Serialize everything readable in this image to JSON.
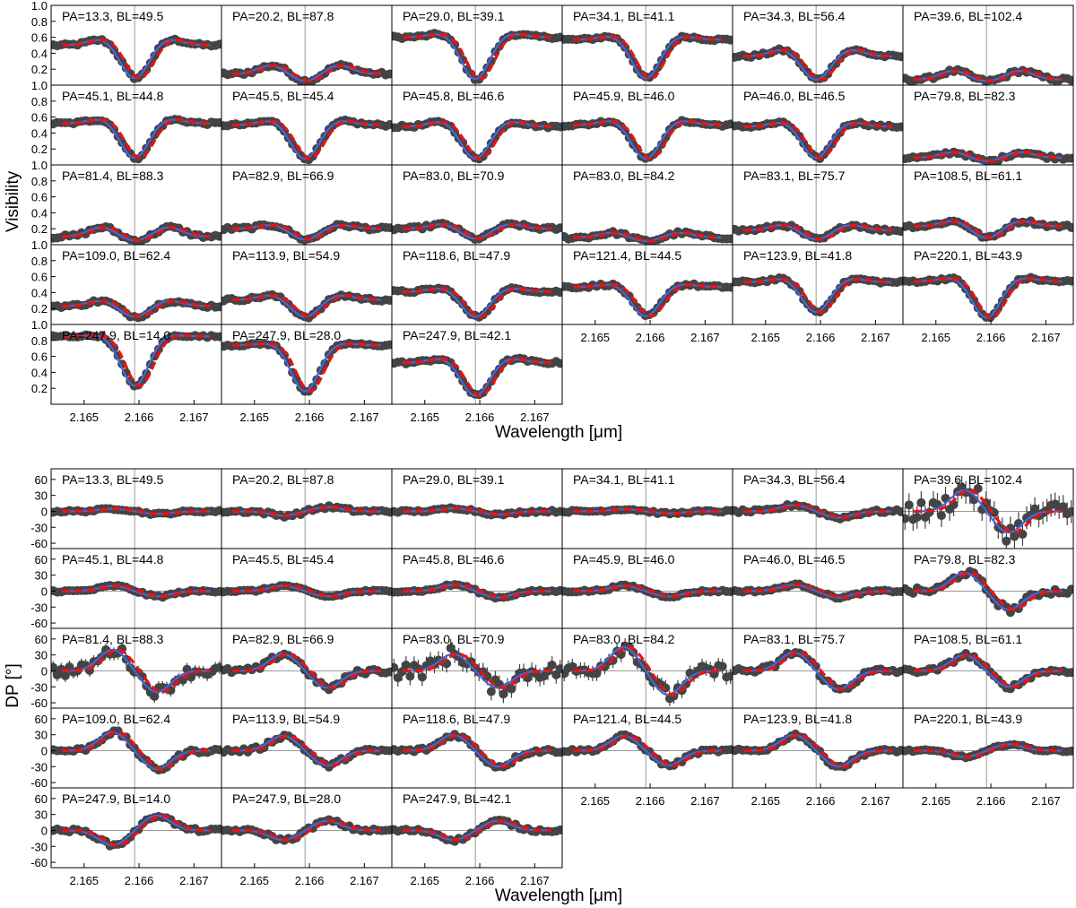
{
  "chart_data": [
    {
      "type": "scatter",
      "panel_group": "visibility",
      "ylabel": "Visibility",
      "xlabel": "Wavelength [μm]",
      "xlim": [
        2.1644,
        2.1675
      ],
      "ylim": [
        0.0,
        1.0
      ],
      "x_ticks": [
        "2.165",
        "2.166",
        "2.167"
      ],
      "x_tick_values": [
        2.165,
        2.166,
        2.167
      ],
      "y_ticks": [
        "1.0",
        "0.8",
        "0.6",
        "0.4",
        "0.2"
      ],
      "y_tick_values": [
        1.0,
        0.8,
        0.6,
        0.4,
        0.2
      ],
      "line_center": 2.16592,
      "series_styles": {
        "data": "#444444",
        "model_a": "#4466dd",
        "model_b": "#ee1111"
      },
      "panels": [
        {
          "label": "PA=13.3, BL=49.5",
          "cont": 0.5,
          "depth": 0.42,
          "bump": 0.08
        },
        {
          "label": "PA=20.2, BL=87.8",
          "cont": 0.14,
          "depth": 0.1,
          "bump": 0.11
        },
        {
          "label": "PA=29.0, BL=39.1",
          "cont": 0.6,
          "depth": 0.53,
          "bump": 0.05
        },
        {
          "label": "PA=34.1, BL=41.1",
          "cont": 0.57,
          "depth": 0.49,
          "bump": 0.05
        },
        {
          "label": "PA=34.3, BL=56.4",
          "cont": 0.36,
          "depth": 0.3,
          "bump": 0.09
        },
        {
          "label": "PA=39.6, BL=102.4",
          "cont": 0.07,
          "depth": 0.03,
          "bump": 0.11
        },
        {
          "label": "PA=45.1, BL=44.8",
          "cont": 0.52,
          "depth": 0.44,
          "bump": 0.06
        },
        {
          "label": "PA=45.5, BL=45.4",
          "cont": 0.5,
          "depth": 0.43,
          "bump": 0.06
        },
        {
          "label": "PA=45.8, BL=46.6",
          "cont": 0.48,
          "depth": 0.41,
          "bump": 0.07
        },
        {
          "label": "PA=45.9, BL=46.0",
          "cont": 0.5,
          "depth": 0.43,
          "bump": 0.06
        },
        {
          "label": "PA=46.0, BL=46.5",
          "cont": 0.48,
          "depth": 0.4,
          "bump": 0.06
        },
        {
          "label": "PA=79.8, BL=82.3",
          "cont": 0.09,
          "depth": 0.05,
          "bump": 0.07
        },
        {
          "label": "PA=81.4, BL=88.3",
          "cont": 0.1,
          "depth": 0.06,
          "bump": 0.12
        },
        {
          "label": "PA=82.9, BL=66.9",
          "cont": 0.2,
          "depth": 0.14,
          "bump": 0.05
        },
        {
          "label": "PA=83.0, BL=70.9",
          "cont": 0.2,
          "depth": 0.13,
          "bump": 0.06
        },
        {
          "label": "PA=83.0, BL=84.2",
          "cont": 0.09,
          "depth": 0.05,
          "bump": 0.06
        },
        {
          "label": "PA=83.1, BL=75.7",
          "cont": 0.18,
          "depth": 0.12,
          "bump": 0.07
        },
        {
          "label": "PA=108.5, BL=61.1",
          "cont": 0.23,
          "depth": 0.15,
          "bump": 0.07
        },
        {
          "label": "PA=109.0, BL=62.4",
          "cont": 0.23,
          "depth": 0.14,
          "bump": 0.07
        },
        {
          "label": "PA=113.9, BL=54.9",
          "cont": 0.31,
          "depth": 0.22,
          "bump": 0.06
        },
        {
          "label": "PA=118.6, BL=47.9",
          "cont": 0.41,
          "depth": 0.32,
          "bump": 0.05
        },
        {
          "label": "PA=121.4, BL=44.5",
          "cont": 0.47,
          "depth": 0.37,
          "bump": 0.04
        },
        {
          "label": "PA=123.9, BL=41.8",
          "cont": 0.53,
          "depth": 0.38,
          "bump": 0.05
        },
        {
          "label": "PA=220.1, BL=43.9",
          "cont": 0.54,
          "depth": 0.46,
          "bump": 0.05
        },
        {
          "label": "PA=247.9, BL=14.0",
          "cont": 0.85,
          "depth": 0.62,
          "bump": 0.02
        },
        {
          "label": "PA=247.9, BL=28.0",
          "cont": 0.74,
          "depth": 0.58,
          "bump": 0.03
        },
        {
          "label": "PA=247.9, BL=42.1",
          "cont": 0.52,
          "depth": 0.42,
          "bump": 0.06
        }
      ]
    },
    {
      "type": "scatter",
      "panel_group": "differential-phase",
      "ylabel": "DP [°]",
      "xlabel": "Wavelength [μm]",
      "xlim": [
        2.1644,
        2.1675
      ],
      "ylim": [
        -70,
        80
      ],
      "x_ticks": [
        "2.165",
        "2.166",
        "2.167"
      ],
      "x_tick_values": [
        2.165,
        2.166,
        2.167
      ],
      "y_ticks": [
        "60",
        "30",
        "0",
        "-30",
        "-60"
      ],
      "y_tick_values": [
        60,
        30,
        0,
        -30,
        -60
      ],
      "line_center": 2.16592,
      "series_styles": {
        "data": "#444444",
        "model_a": "#4466dd",
        "model_b": "#ee1111"
      },
      "panels": [
        {
          "label": "PA=13.3, BL=49.5",
          "amp": 5,
          "noise": 2
        },
        {
          "label": "PA=20.2, BL=87.8",
          "amp": -8,
          "noise": 3
        },
        {
          "label": "PA=29.0, BL=39.1",
          "amp": 6,
          "noise": 2
        },
        {
          "label": "PA=34.1, BL=41.1",
          "amp": 4,
          "noise": 2
        },
        {
          "label": "PA=34.3, BL=56.4",
          "amp": 12,
          "noise": 3
        },
        {
          "label": "PA=39.6, BL=102.4",
          "amp": 40,
          "noise": 18
        },
        {
          "label": "PA=45.1, BL=44.8",
          "amp": 10,
          "noise": 2
        },
        {
          "label": "PA=45.5, BL=45.4",
          "amp": 10,
          "noise": 2
        },
        {
          "label": "PA=45.8, BL=46.6",
          "amp": 12,
          "noise": 2
        },
        {
          "label": "PA=45.9, BL=46.0",
          "amp": 10,
          "noise": 2
        },
        {
          "label": "PA=46.0, BL=46.5",
          "amp": 12,
          "noise": 2
        },
        {
          "label": "PA=79.8, BL=82.3",
          "amp": 35,
          "noise": 6
        },
        {
          "label": "PA=81.4, BL=88.3",
          "amp": 40,
          "noise": 10
        },
        {
          "label": "PA=82.9, BL=66.9",
          "amp": 32,
          "noise": 5
        },
        {
          "label": "PA=83.0, BL=70.9",
          "amp": 32,
          "noise": 14
        },
        {
          "label": "PA=83.0, BL=84.2",
          "amp": 45,
          "noise": 12
        },
        {
          "label": "PA=83.1, BL=75.7",
          "amp": 35,
          "noise": 6
        },
        {
          "label": "PA=108.5, BL=61.1",
          "amp": 30,
          "noise": 4
        },
        {
          "label": "PA=109.0, BL=62.4",
          "amp": 35,
          "noise": 4
        },
        {
          "label": "PA=113.9, BL=54.9",
          "amp": 28,
          "noise": 4
        },
        {
          "label": "PA=118.6, BL=47.9",
          "amp": 30,
          "noise": 4
        },
        {
          "label": "PA=121.4, BL=44.5",
          "amp": 28,
          "noise": 3
        },
        {
          "label": "PA=123.9, BL=41.8",
          "amp": 30,
          "noise": 3
        },
        {
          "label": "PA=220.1, BL=43.9",
          "amp": -12,
          "noise": 2
        },
        {
          "label": "PA=247.9, BL=14.0",
          "amp": -28,
          "noise": 3
        },
        {
          "label": "PA=247.9, BL=28.0",
          "amp": -18,
          "noise": 3
        },
        {
          "label": "PA=247.9, BL=42.1",
          "amp": -18,
          "noise": 3
        }
      ]
    }
  ]
}
